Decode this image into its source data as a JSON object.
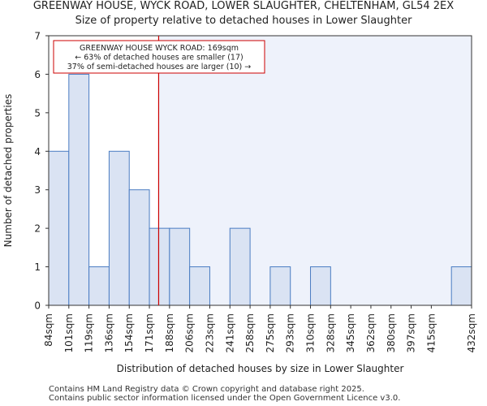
{
  "title": "GREENWAY HOUSE, WYCK ROAD, LOWER SLAUGHTER, CHELTENHAM, GL54 2EX",
  "subtitle": "Size of property relative to detached houses in Lower Slaughter",
  "footer": {
    "line1": "Contains HM Land Registry data © Crown copyright and database right 2025.",
    "line2": "Contains public sector information licensed under the Open Government Licence v3.0."
  },
  "chart_data": {
    "type": "bar",
    "xlabel": "Distribution of detached houses by size in Lower Slaughter",
    "ylabel": "Number of detached properties",
    "categories": [
      "84sqm",
      "101sqm",
      "119sqm",
      "136sqm",
      "154sqm",
      "171sqm",
      "188sqm",
      "206sqm",
      "223sqm",
      "241sqm",
      "258sqm",
      "275sqm",
      "293sqm",
      "310sqm",
      "328sqm",
      "345sqm",
      "362sqm",
      "380sqm",
      "397sqm",
      "415sqm",
      "432sqm"
    ],
    "values": [
      4,
      6,
      1,
      4,
      3,
      2,
      2,
      1,
      0,
      2,
      0,
      1,
      0,
      1,
      0,
      0,
      0,
      0,
      0,
      0,
      1
    ],
    "ylim": [
      0,
      7
    ],
    "yticks": [
      "0",
      "1",
      "2",
      "3",
      "4",
      "5",
      "6",
      "7"
    ],
    "marker_value_index": 4.96,
    "annotation": {
      "line1": "GREENWAY HOUSE WYCK ROAD: 169sqm",
      "line2": "← 63% of detached houses are smaller (17)",
      "line3": "37% of semi-detached houses are larger (10) →"
    },
    "colors": {
      "bar_fill": "#dae3f3",
      "bar_stroke": "#4a7cc2",
      "shade": "#eef2fb",
      "marker": "#cc0000"
    }
  }
}
